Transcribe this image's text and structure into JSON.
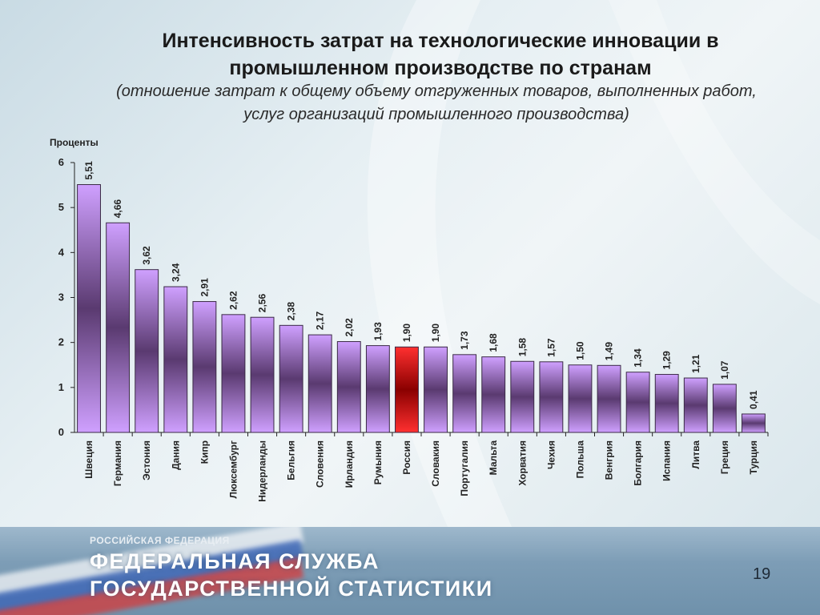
{
  "title_line1": "Интенсивность затрат на технологические инновации в",
  "title_line2": "промышленном производстве по странам",
  "subtitle_line1": "(отношение затрат к общему объему отгруженных товаров, выполненных работ,",
  "subtitle_line2": "услуг организаций промышленного производства)",
  "footer": {
    "small": "РОССИЙСКАЯ ФЕДЕРАЦИЯ",
    "line1": "ФЕДЕРАЛЬНАЯ СЛУЖБА",
    "line2": "ГОСУДАРСТВЕННОЙ СТАТИСТИКИ",
    "page_number": "19"
  },
  "colors": {
    "bar_light": "#cfa0ff",
    "bar_dark": "#5a3a70",
    "highlight_light": "#ff3030",
    "highlight_dark": "#8a0000",
    "highlight_category": "Россия"
  },
  "chart_data": {
    "type": "bar",
    "title": "",
    "ylabel": "Проценты",
    "xlabel": "",
    "ylim": [
      0,
      6
    ],
    "yticks": [
      0,
      1,
      2,
      3,
      4,
      5,
      6
    ],
    "categories": [
      "Швеция",
      "Германия",
      "Эстония",
      "Дания",
      "Кипр",
      "Люксембург",
      "Нидерланды",
      "Бельгия",
      "Словения",
      "Ирландия",
      "Румыния",
      "Россия",
      "Словакия",
      "Португалия",
      "Мальта",
      "Хорватия",
      "Чехия",
      "Польша",
      "Венгрия",
      "Болгария",
      "Испания",
      "Литва",
      "Греция",
      "Турция"
    ],
    "values": [
      5.51,
      4.66,
      3.62,
      3.24,
      2.91,
      2.62,
      2.56,
      2.38,
      2.17,
      2.02,
      1.93,
      1.9,
      1.9,
      1.73,
      1.68,
      1.58,
      1.57,
      1.5,
      1.49,
      1.34,
      1.29,
      1.21,
      1.07,
      0.41
    ],
    "value_labels": [
      "5,51",
      "4,66",
      "3,62",
      "3,24",
      "2,91",
      "2,62",
      "2,56",
      "2,38",
      "2,17",
      "2,02",
      "1,93",
      "1,90",
      "1,90",
      "1,73",
      "1,68",
      "1,58",
      "1,57",
      "1,50",
      "1,49",
      "1,34",
      "1,29",
      "1,21",
      "1,07",
      "0,41"
    ],
    "grid": false,
    "legend": "none"
  }
}
